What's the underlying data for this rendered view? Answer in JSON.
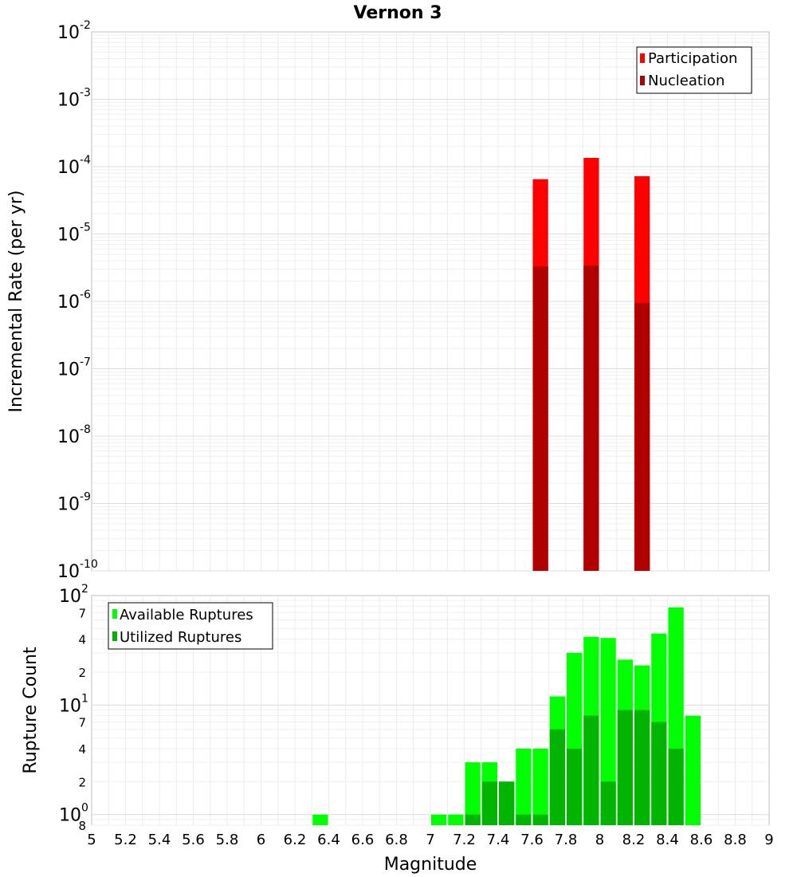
{
  "chart_data": [
    {
      "type": "bar",
      "title": "Vernon 3",
      "xlabel": "Magnitude",
      "ylabel": "Incremental Rate (per yr)",
      "yscale": "log",
      "xlim": [
        5,
        9
      ],
      "ylim": [
        1e-10,
        0.01
      ],
      "ytick_labels": [
        {
          "base": "10",
          "exp": "-10"
        },
        {
          "base": "10",
          "exp": "-9"
        },
        {
          "base": "10",
          "exp": "-8"
        },
        {
          "base": "10",
          "exp": "-7"
        },
        {
          "base": "10",
          "exp": "-6"
        },
        {
          "base": "10",
          "exp": "-5"
        },
        {
          "base": "10",
          "exp": "-4"
        },
        {
          "base": "10",
          "exp": "-3"
        },
        {
          "base": "10",
          "exp": "-2"
        }
      ],
      "legend_position": "top-right",
      "bar_width": 0.1,
      "series": [
        {
          "name": "Participation",
          "color": "#ff0000",
          "x": [
            7.65,
            7.95,
            8.25
          ],
          "values": [
            6.5e-05,
            0.000135,
            7.2e-05
          ]
        },
        {
          "name": "Nucleation",
          "color": "#b00000",
          "x": [
            7.65,
            7.95,
            8.25
          ],
          "values": [
            3.3e-06,
            3.4e-06,
            9.5e-07
          ]
        }
      ]
    },
    {
      "type": "bar",
      "xlabel": "Magnitude",
      "ylabel": "Rupture Count",
      "yscale": "log",
      "xlim": [
        5,
        9
      ],
      "ylim": [
        0.8,
        100
      ],
      "xtick_labels": [
        "5",
        "5.2",
        "5.4",
        "5.6",
        "5.8",
        "6",
        "6.2",
        "6.4",
        "6.6",
        "6.8",
        "7",
        "7.2",
        "7.4",
        "7.6",
        "7.8",
        "8",
        "8.2",
        "8.4",
        "8.6",
        "8.8",
        "9"
      ],
      "ytick_labels": [
        {
          "base": "10",
          "exp": "0"
        },
        {
          "base": "10",
          "exp": "1"
        },
        {
          "base": "10",
          "exp": "2"
        }
      ],
      "minor_tick_labels": [
        "8",
        "2",
        "4",
        "7",
        "2",
        "4",
        "7"
      ],
      "legend_position": "top-left",
      "bar_width": 0.1,
      "series": [
        {
          "name": "Available Ruptures",
          "color": "#00ff00",
          "x": [
            6.35,
            7.05,
            7.15,
            7.25,
            7.35,
            7.45,
            7.55,
            7.65,
            7.75,
            7.85,
            7.95,
            8.05,
            8.15,
            8.25,
            8.35,
            8.45,
            8.55
          ],
          "values": [
            1,
            1,
            1,
            3,
            3,
            2,
            4,
            4,
            12,
            30,
            42,
            41,
            26,
            23,
            45,
            78,
            8
          ]
        },
        {
          "name": "Utilized Ruptures",
          "color": "#00b400",
          "x": [
            7.25,
            7.35,
            7.45,
            7.55,
            7.65,
            7.75,
            7.85,
            7.95,
            8.05,
            8.15,
            8.25,
            8.35,
            8.45
          ],
          "values": [
            1,
            2,
            2,
            1,
            1,
            6,
            4,
            8,
            2,
            9,
            9,
            7,
            4
          ]
        }
      ]
    }
  ]
}
